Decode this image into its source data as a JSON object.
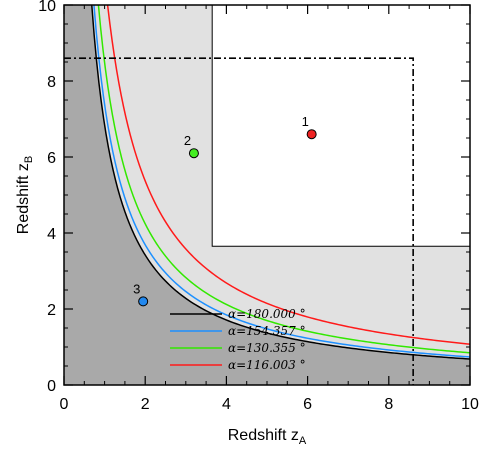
{
  "chart_data": {
    "type": "line",
    "xlabel": "Redshift z",
    "xlabel_sub": "A",
    "ylabel": "Redshift z",
    "ylabel_sub": "B",
    "xlim": [
      0,
      10
    ],
    "ylim": [
      0,
      10
    ],
    "x_ticks": [
      "0",
      "2",
      "4",
      "6",
      "8",
      "10"
    ],
    "y_ticks": [
      "0",
      "2",
      "4",
      "6",
      "8",
      "10"
    ],
    "legend_position": "bottom-center",
    "series": [
      {
        "name": "α=180.000 °",
        "color": "#000000",
        "k": 6.84
      },
      {
        "name": "α=154.357 °",
        "color": "#1e90ff",
        "k": 7.38
      },
      {
        "name": "α=130.355 °",
        "color": "#32e800",
        "k": 8.48
      },
      {
        "name": "α=116.003 °",
        "color": "#ff1a1a",
        "k": 10.74
      }
    ],
    "points": [
      {
        "label": "1",
        "x": 6.1,
        "y": 6.6,
        "color": "#ee2222"
      },
      {
        "label": "2",
        "x": 3.2,
        "y": 6.1,
        "color": "#44ee22"
      },
      {
        "label": "3",
        "x": 1.95,
        "y": 2.2,
        "color": "#2288ee"
      }
    ],
    "excluded_region_limit": 3.65,
    "dashdot_box_limit": 8.6,
    "colors": {
      "dark_region": "#a9a9a9",
      "light_region": "#e1e1e1"
    }
  }
}
